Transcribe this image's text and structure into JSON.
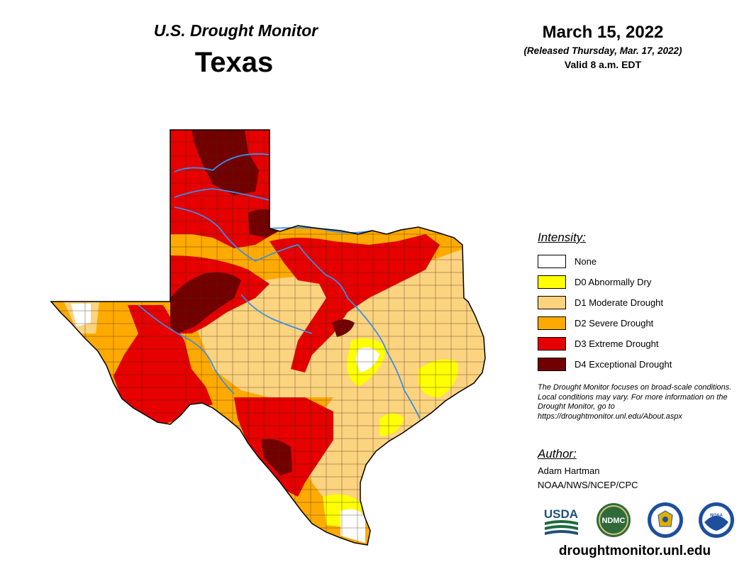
{
  "header": {
    "monitor_title": "U.S. Drought Monitor",
    "state": "Texas"
  },
  "date": {
    "main": "March 15, 2022",
    "released": "(Released Thursday, Mar. 17, 2022)",
    "valid": "Valid 8 a.m. EDT"
  },
  "legend": {
    "title": "Intensity:",
    "items": [
      {
        "label": "None",
        "color": "#ffffff"
      },
      {
        "label": "D0 Abnormally Dry",
        "color": "#ffff00"
      },
      {
        "label": "D1 Moderate Drought",
        "color": "#fcd37f"
      },
      {
        "label": "D2 Severe Drought",
        "color": "#ffaa00"
      },
      {
        "label": "D3 Extreme Drought",
        "color": "#e60000"
      },
      {
        "label": "D4 Exceptional Drought",
        "color": "#730000"
      }
    ]
  },
  "note": "The Drought Monitor focuses on broad-scale conditions. Local conditions may vary. For more information on the Drought Monitor, go to https://droughtmonitor.unl.edu/About.aspx",
  "author": {
    "title": "Author:",
    "name": "Adam Hartman",
    "org": "NOAA/NWS/NCEP/CPC"
  },
  "logos": {
    "usda": "USDA",
    "ndmc": "NDMC",
    "noaa": "NOAA"
  },
  "url": "droughtmonitor.unl.edu",
  "colors": {
    "river": "#3a8ee6",
    "border": "#000000"
  }
}
